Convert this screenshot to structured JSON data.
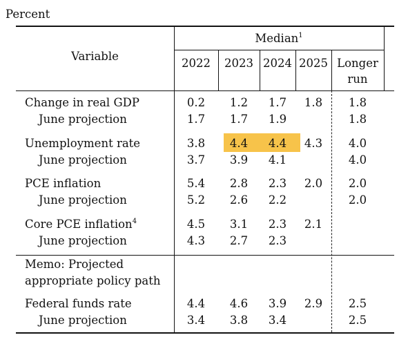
{
  "unit_label": "Percent",
  "header": {
    "variable": "Variable",
    "median": "Median",
    "median_footnote": "1",
    "years": [
      "2022",
      "2023",
      "2024",
      "2025"
    ],
    "longer_run_line1": "Longer",
    "longer_run_line2": "run"
  },
  "rows": [
    {
      "label": "Change in real GDP",
      "footnote": "",
      "values": [
        "0.2",
        "1.2",
        "1.7",
        "1.8",
        "1.8"
      ]
    },
    {
      "label": "June projection",
      "footnote": "",
      "values": [
        "1.7",
        "1.7",
        "1.9",
        "",
        "1.8"
      ]
    },
    {
      "label": "Unemployment rate",
      "footnote": "",
      "values": [
        "3.8",
        "4.4",
        "4.4",
        "4.3",
        "4.0"
      ]
    },
    {
      "label": "June projection",
      "footnote": "",
      "values": [
        "3.7",
        "3.9",
        "4.1",
        "",
        "4.0"
      ]
    },
    {
      "label": "PCE inflation",
      "footnote": "",
      "values": [
        "5.4",
        "2.8",
        "2.3",
        "2.0",
        "2.0"
      ]
    },
    {
      "label": "June projection",
      "footnote": "",
      "values": [
        "5.2",
        "2.6",
        "2.2",
        "",
        "2.0"
      ]
    },
    {
      "label": "Core PCE inflation",
      "footnote": "4",
      "values": [
        "4.5",
        "3.1",
        "2.3",
        "2.1",
        ""
      ]
    },
    {
      "label": "June projection",
      "footnote": "",
      "values": [
        "4.3",
        "2.7",
        "2.3",
        "",
        ""
      ]
    },
    {
      "label": "Federal funds rate",
      "footnote": "",
      "values": [
        "4.4",
        "4.6",
        "3.9",
        "2.9",
        "2.5"
      ]
    },
    {
      "label": "June projection",
      "footnote": "",
      "values": [
        "3.4",
        "3.8",
        "3.4",
        "",
        "2.5"
      ]
    }
  ],
  "memo": {
    "line1": "Memo: Projected",
    "line2": "appropriate policy path"
  },
  "highlight_color": "#f7c34a"
}
